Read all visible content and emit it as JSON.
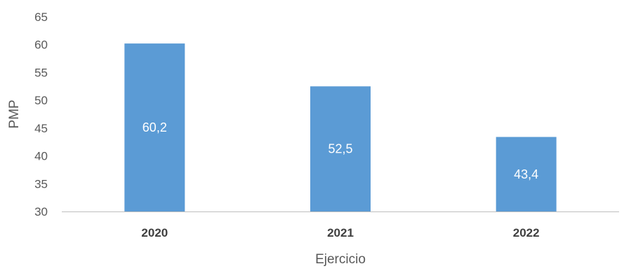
{
  "chart_data": {
    "type": "bar",
    "categories": [
      "2020",
      "2021",
      "2022"
    ],
    "values": [
      60.2,
      52.5,
      43.4
    ],
    "data_labels": [
      "60,2",
      "52,5",
      "43,4"
    ],
    "title": "",
    "xlabel": "Ejercicio",
    "ylabel": "PMP",
    "ylim": [
      30,
      65
    ],
    "yticks": [
      "30",
      "35",
      "40",
      "45",
      "50",
      "55",
      "60",
      "65"
    ],
    "grid": false,
    "legend": "none",
    "bar_color": "#5b9bd5",
    "axis_color": "#bfbfbf"
  }
}
